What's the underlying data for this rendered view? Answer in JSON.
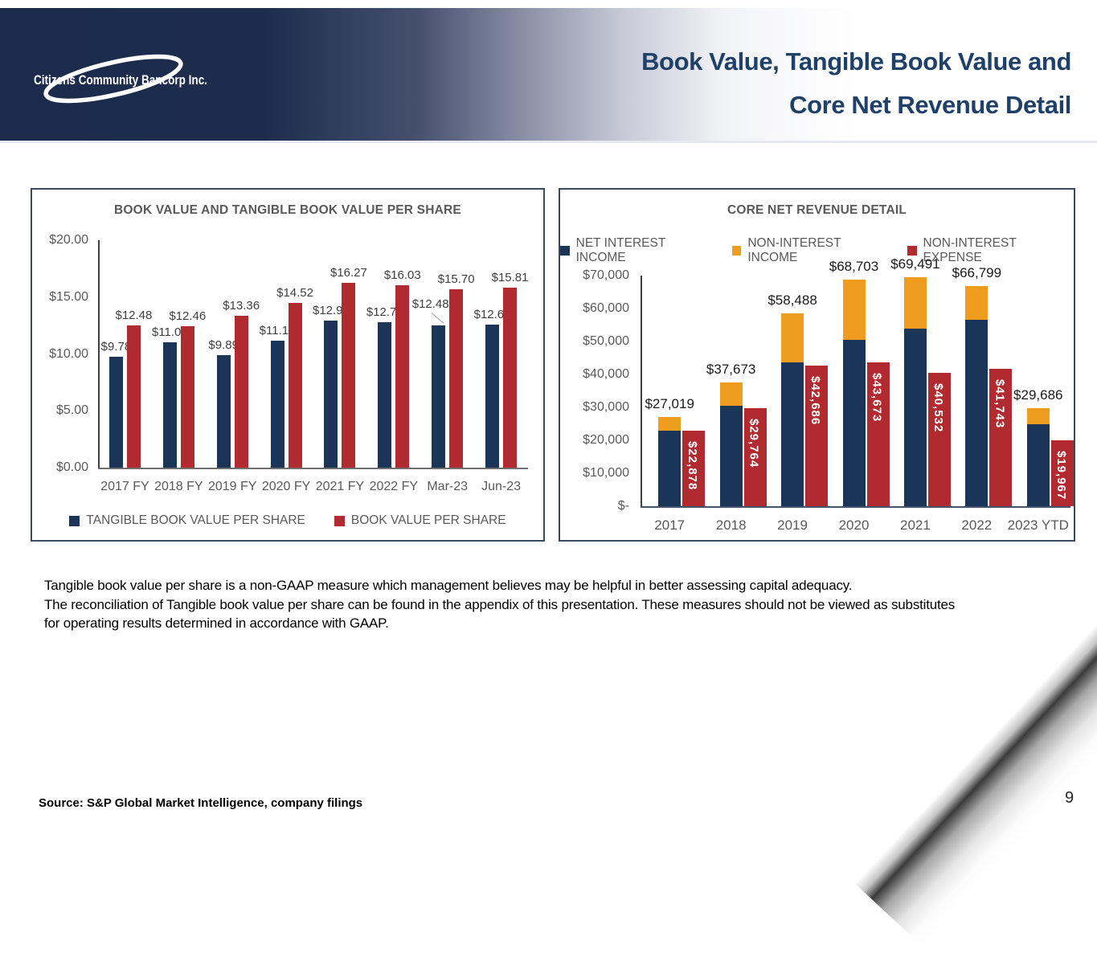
{
  "header": {
    "logo_text": "Citizens Community Bancorp Inc.",
    "title_line1": "Book Value, Tangible Book Value and",
    "title_line2": "Core Net Revenue Detail",
    "band_color": "#1c2b4c",
    "title_color": "#1f4068"
  },
  "colors": {
    "navy": "#1b3559",
    "red": "#b02a30",
    "orange": "#ee9d1e",
    "gray_text": "#595959"
  },
  "chart_data": [
    {
      "type": "bar",
      "title": "BOOK VALUE AND TANGIBLE BOOK VALUE PER SHARE",
      "categories": [
        "2017 FY",
        "2018 FY",
        "2019 FY",
        "2020 FY",
        "2021 FY",
        "2022 FY",
        "Mar-23",
        "Jun-23"
      ],
      "series": [
        {
          "name": "TANGIBLE BOOK VALUE PER SHARE",
          "color": "#1b3559",
          "values": [
            9.78,
            11.05,
            9.89,
            11.18,
            12.9,
            12.77,
            12.48,
            12.61
          ],
          "labels": [
            "$9.78",
            "$11.05",
            "$9.89",
            "$11.18",
            "$12.90",
            "$12.77",
            "$12.48",
            "$12.61"
          ]
        },
        {
          "name": "BOOK VALUE PER SHARE",
          "color": "#b02a30",
          "values": [
            12.48,
            12.46,
            13.36,
            14.52,
            16.27,
            16.03,
            15.7,
            15.81
          ],
          "labels": [
            "$12.48",
            "$12.46",
            "$13.36",
            "$14.52",
            "$16.27",
            "$16.03",
            "$15.70",
            "$15.81"
          ]
        }
      ],
      "y_ticks": [
        "$20.00",
        "$15.00",
        "$10.00",
        "$5.00",
        "$0.00"
      ],
      "ylim": [
        0,
        20
      ],
      "grid": false,
      "legend_position": "bottom"
    },
    {
      "type": "stacked-bar+bar",
      "title": "CORE NET REVENUE DETAIL",
      "categories": [
        "2017",
        "2018",
        "2019",
        "2020",
        "2021",
        "2022",
        "2023 YTD"
      ],
      "stack_series": [
        {
          "name": "NET INTEREST INCOME",
          "color": "#1b3559",
          "values": [
            22900,
            30400,
            43600,
            50400,
            53900,
            56500,
            24800
          ],
          "note": "estimated from bar heights"
        },
        {
          "name": "NON-INTEREST INCOME",
          "color": "#ee9d1e",
          "values": [
            4119,
            7273,
            14888,
            18303,
            15591,
            10299,
            4886
          ],
          "note": "estimated from bar heights"
        }
      ],
      "stack_total_labels": [
        "$27,019",
        "$37,673",
        "$58,488",
        "$68,703",
        "$69,491",
        "$66,799",
        "$29,686"
      ],
      "stack_totals": [
        27019,
        37673,
        58488,
        68703,
        69491,
        66799,
        29686
      ],
      "bar_series": {
        "name": "NON-INTEREST EXPENSE",
        "color": "#b02a30",
        "values": [
          22878,
          29764,
          42686,
          43673,
          40532,
          41743,
          19967
        ],
        "labels": [
          "$22,878",
          "$29,764",
          "$42,686",
          "$43,673",
          "$40,532",
          "$41,743",
          "$19,967"
        ]
      },
      "y_ticks": [
        "$70,000",
        "$60,000",
        "$50,000",
        "$40,000",
        "$30,000",
        "$20,000",
        "$10,000",
        "$-"
      ],
      "ylim": [
        0,
        70000
      ],
      "grid": false,
      "legend_position": "top"
    }
  ],
  "footnote": {
    "line1": "Tangible book value per share is a non-GAAP measure which management believes may be helpful in better assessing capital adequacy.",
    "line2": "The reconciliation of Tangible book value per share can be found in the appendix of this presentation. These measures should not be viewed as substitutes",
    "line3": "for  operating results determined in accordance with GAAP."
  },
  "source": "Source: S&P Global Market Intelligence, company filings",
  "page_number": "9"
}
